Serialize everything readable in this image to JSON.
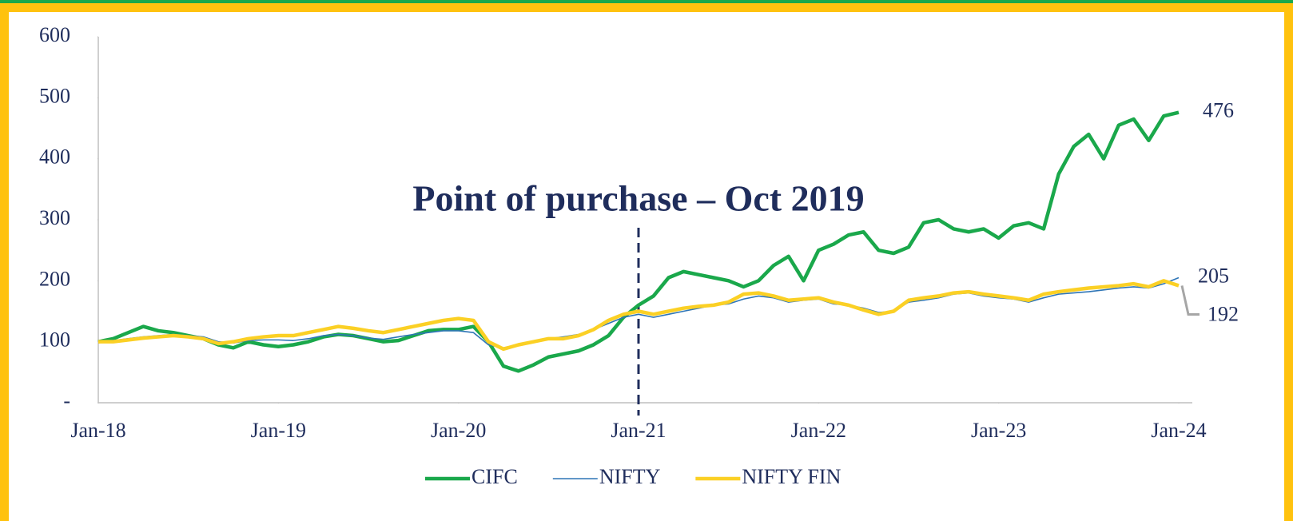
{
  "chart_data": {
    "type": "line",
    "annotation": {
      "text": "Point of purchase – Oct 2019",
      "x": "2021-01"
    },
    "x": [
      "2018-01",
      "2018-02",
      "2018-03",
      "2018-04",
      "2018-05",
      "2018-06",
      "2018-07",
      "2018-08",
      "2018-09",
      "2018-10",
      "2018-11",
      "2018-12",
      "2019-01",
      "2019-02",
      "2019-03",
      "2019-04",
      "2019-05",
      "2019-06",
      "2019-07",
      "2019-08",
      "2019-09",
      "2019-10",
      "2019-11",
      "2019-12",
      "2020-01",
      "2020-02",
      "2020-03",
      "2020-04",
      "2020-05",
      "2020-06",
      "2020-07",
      "2020-08",
      "2020-09",
      "2020-10",
      "2020-11",
      "2020-12",
      "2021-01",
      "2021-02",
      "2021-03",
      "2021-04",
      "2021-05",
      "2021-06",
      "2021-07",
      "2021-08",
      "2021-09",
      "2021-10",
      "2021-11",
      "2021-12",
      "2022-01",
      "2022-02",
      "2022-03",
      "2022-04",
      "2022-05",
      "2022-06",
      "2022-07",
      "2022-08",
      "2022-09",
      "2022-10",
      "2022-11",
      "2022-12",
      "2023-01",
      "2023-02",
      "2023-03",
      "2023-04",
      "2023-05",
      "2023-06",
      "2023-07",
      "2023-08",
      "2023-09",
      "2023-10",
      "2023-11",
      "2023-12",
      "2024-01"
    ],
    "series": [
      {
        "name": "CIFC",
        "color": "#1aa84b",
        "values": [
          100,
          105,
          115,
          125,
          118,
          115,
          110,
          105,
          95,
          90,
          100,
          95,
          92,
          95,
          100,
          108,
          112,
          110,
          105,
          100,
          102,
          110,
          118,
          120,
          120,
          125,
          100,
          60,
          52,
          62,
          75,
          80,
          85,
          95,
          110,
          140,
          160,
          175,
          205,
          215,
          210,
          205,
          200,
          190,
          200,
          225,
          240,
          200,
          250,
          260,
          275,
          280,
          250,
          245,
          255,
          295,
          300,
          285,
          280,
          285,
          270,
          290,
          295,
          285,
          375,
          420,
          440,
          400,
          455,
          465,
          430,
          470,
          476
        ]
      },
      {
        "name": "NIFTY",
        "color": "#2e75b6",
        "values": [
          100,
          102,
          105,
          108,
          110,
          112,
          110,
          108,
          100,
          98,
          102,
          103,
          103,
          102,
          105,
          110,
          112,
          110,
          106,
          104,
          108,
          112,
          115,
          118,
          118,
          115,
          95,
          90,
          95,
          100,
          105,
          108,
          112,
          120,
          130,
          140,
          145,
          140,
          145,
          150,
          155,
          160,
          162,
          170,
          175,
          172,
          165,
          168,
          170,
          162,
          160,
          155,
          148,
          150,
          165,
          168,
          172,
          178,
          180,
          175,
          172,
          170,
          165,
          172,
          178,
          180,
          182,
          185,
          188,
          190,
          188,
          195,
          205
        ]
      },
      {
        "name": "NIFTY FIN",
        "color": "#fbd025",
        "values": [
          100,
          100,
          103,
          106,
          108,
          110,
          108,
          105,
          97,
          100,
          105,
          108,
          110,
          110,
          115,
          120,
          125,
          122,
          118,
          115,
          120,
          125,
          130,
          135,
          138,
          135,
          100,
          88,
          95,
          100,
          105,
          105,
          110,
          120,
          135,
          145,
          150,
          145,
          150,
          155,
          158,
          160,
          165,
          178,
          180,
          175,
          168,
          170,
          172,
          165,
          160,
          152,
          145,
          150,
          168,
          172,
          175,
          180,
          182,
          178,
          175,
          172,
          168,
          178,
          182,
          185,
          188,
          190,
          192,
          195,
          190,
          200,
          192
        ]
      }
    ],
    "xlim": [
      "2018-01",
      "2024-01"
    ],
    "xticks": [
      {
        "value": "2018-01",
        "label": "Jan-18"
      },
      {
        "value": "2019-01",
        "label": "Jan-19"
      },
      {
        "value": "2020-01",
        "label": "Jan-20"
      },
      {
        "value": "2021-01",
        "label": "Jan-21"
      },
      {
        "value": "2022-01",
        "label": "Jan-22"
      },
      {
        "value": "2023-01",
        "label": "Jan-23"
      },
      {
        "value": "2024-01",
        "label": "Jan-24"
      }
    ],
    "ylim": [
      0,
      600
    ],
    "yticks": [
      {
        "value": 0,
        "label": "-"
      },
      100,
      200,
      300,
      400,
      500,
      600
    ],
    "legend": "bottom"
  }
}
